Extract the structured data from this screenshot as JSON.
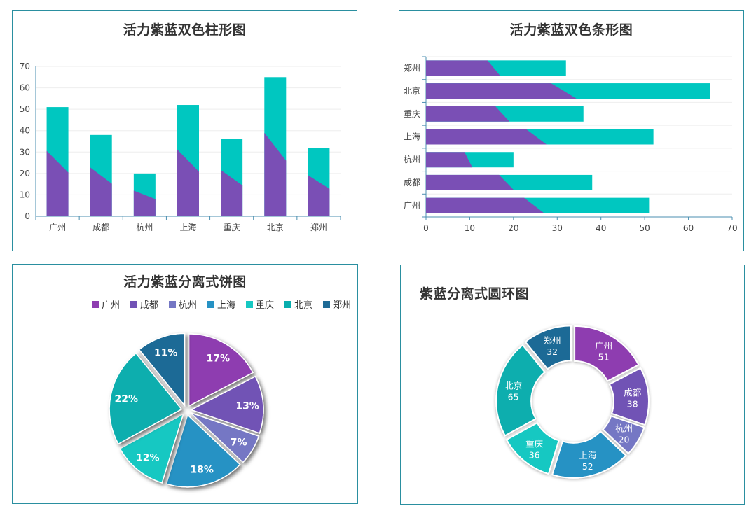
{
  "colors": {
    "purple": "#7a4fb5",
    "teal": "#00c7c0",
    "border": "#2a8fa0",
    "pie": [
      "#8e3db0",
      "#7152b5",
      "#7477c4",
      "#2692c4",
      "#16c8c2",
      "#08aeae",
      "#1f6b96"
    ]
  },
  "chart_data": [
    {
      "type": "bar",
      "title": "活力紫蓝双色柱形图",
      "categories": [
        "广州",
        "成都",
        "杭州",
        "上海",
        "重庆",
        "北京",
        "郑州"
      ],
      "values": [
        51,
        38,
        20,
        52,
        36,
        65,
        32
      ],
      "ylim": [
        0,
        70
      ],
      "yticks": [
        0,
        10,
        20,
        30,
        40,
        50,
        60,
        70
      ],
      "grid": true
    },
    {
      "type": "bar",
      "orientation": "horizontal",
      "title": "活力紫蓝双色条形图",
      "categories": [
        "广州",
        "成都",
        "杭州",
        "上海",
        "重庆",
        "北京",
        "郑州"
      ],
      "values": [
        51,
        38,
        20,
        52,
        36,
        65,
        32
      ],
      "xlim": [
        0,
        70
      ],
      "xticks": [
        0,
        10,
        20,
        30,
        40,
        50,
        60,
        70
      ],
      "grid": true
    },
    {
      "type": "pie",
      "title": "活力紫蓝分离式饼图",
      "labels": [
        "广州",
        "成都",
        "杭州",
        "上海",
        "重庆",
        "北京",
        "郑州"
      ],
      "values": [
        51,
        38,
        20,
        52,
        36,
        65,
        32
      ],
      "percent_labels": [
        "17%",
        "13%",
        "7%",
        "18%",
        "12%",
        "22%",
        "11%"
      ],
      "legend": "top"
    },
    {
      "type": "pie",
      "variant": "donut",
      "title": "紫蓝分离式圆环图",
      "labels": [
        "广州",
        "成都",
        "杭州",
        "上海",
        "重庆",
        "北京",
        "郑州"
      ],
      "values": [
        51,
        38,
        20,
        52,
        36,
        65,
        32
      ]
    }
  ]
}
